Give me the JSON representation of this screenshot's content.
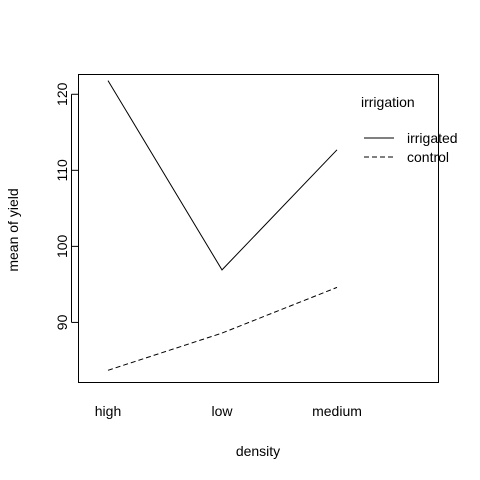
{
  "chart_data": {
    "type": "line",
    "title": "",
    "xlabel": "density",
    "ylabel": "mean of yield",
    "categories": [
      "high",
      "low",
      "medium"
    ],
    "ylim": [
      82.1,
      122.6
    ],
    "yticks": [
      90,
      100,
      110,
      120
    ],
    "grid": false,
    "legend": {
      "title": "irrigation",
      "position": "top-right"
    },
    "series": [
      {
        "name": "irrigated",
        "line_style": "solid",
        "values": [
          121.8,
          96.9,
          112.7
        ]
      },
      {
        "name": "control",
        "line_style": "dashed",
        "values": [
          83.7,
          88.6,
          94.6
        ]
      }
    ],
    "colors": {
      "line": "#000000",
      "background": "#ffffff"
    }
  }
}
